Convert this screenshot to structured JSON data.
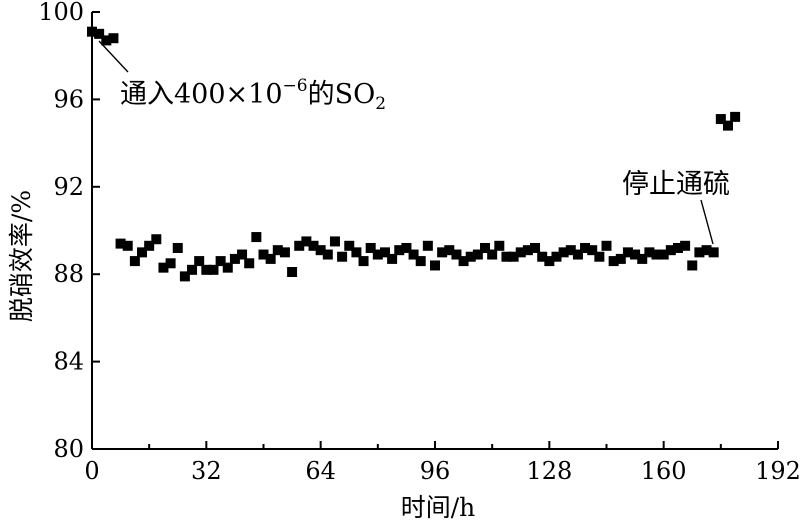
{
  "chart_data": {
    "type": "scatter",
    "title": "",
    "xlabel": "时间/h",
    "ylabel": "脱硝效率/%",
    "xlim": [
      0,
      192
    ],
    "ylim": [
      80,
      100
    ],
    "xticks": [
      0,
      32,
      64,
      96,
      128,
      160,
      192
    ],
    "yticks": [
      80,
      84,
      88,
      92,
      96,
      100
    ],
    "grid": false,
    "legend": "none",
    "marker": "square",
    "color": "#000000",
    "annotations": [
      {
        "id": "so2",
        "text_main": "通入400×10",
        "text_sup": "−6",
        "text_rest": "的SO",
        "text_sub": "2",
        "x": 4,
        "y": 98.9
      },
      {
        "id": "stop",
        "text": "停止通硫",
        "x": 175,
        "y": 89.0
      }
    ],
    "series": [
      {
        "x": [
          0,
          2,
          4,
          6,
          8,
          10,
          12,
          14,
          16,
          18,
          20,
          22,
          24,
          26,
          28,
          30,
          32,
          34,
          36,
          38,
          40,
          42,
          44,
          46,
          48,
          50,
          52,
          54,
          56,
          58,
          60,
          62,
          64,
          66,
          68,
          70,
          72,
          74,
          76,
          78,
          80,
          82,
          84,
          86,
          88,
          90,
          92,
          94,
          96,
          98,
          100,
          102,
          104,
          106,
          108,
          110,
          112,
          114,
          116,
          118,
          120,
          122,
          124,
          126,
          128,
          130,
          132,
          134,
          136,
          138,
          140,
          142,
          144,
          146,
          148,
          150,
          152,
          154,
          156,
          158,
          160,
          162,
          164,
          166,
          168,
          170,
          172,
          174,
          176,
          178,
          180
        ],
        "y": [
          99.1,
          99.0,
          98.7,
          98.8,
          89.4,
          89.3,
          88.6,
          89.0,
          89.3,
          89.6,
          88.3,
          88.5,
          89.2,
          87.9,
          88.2,
          88.6,
          88.2,
          88.2,
          88.6,
          88.3,
          88.7,
          88.9,
          88.5,
          89.7,
          88.9,
          88.7,
          89.1,
          89.0,
          88.1,
          89.3,
          89.5,
          89.3,
          89.1,
          88.9,
          89.5,
          88.8,
          89.3,
          89.0,
          88.6,
          89.2,
          88.9,
          89.0,
          88.7,
          89.1,
          89.2,
          88.9,
          88.6,
          89.3,
          88.4,
          89.0,
          89.1,
          88.9,
          88.6,
          88.8,
          88.9,
          89.2,
          88.9,
          89.3,
          88.8,
          88.8,
          89.0,
          89.1,
          89.2,
          88.8,
          88.6,
          88.8,
          89.0,
          89.1,
          88.9,
          89.2,
          89.1,
          88.8,
          89.3,
          88.6,
          88.7,
          89.0,
          88.9,
          88.7,
          89.0,
          88.9,
          88.9,
          89.1,
          89.2,
          89.3,
          88.4,
          89.0,
          89.1,
          89.0,
          95.1,
          94.8,
          95.2
        ]
      }
    ]
  }
}
